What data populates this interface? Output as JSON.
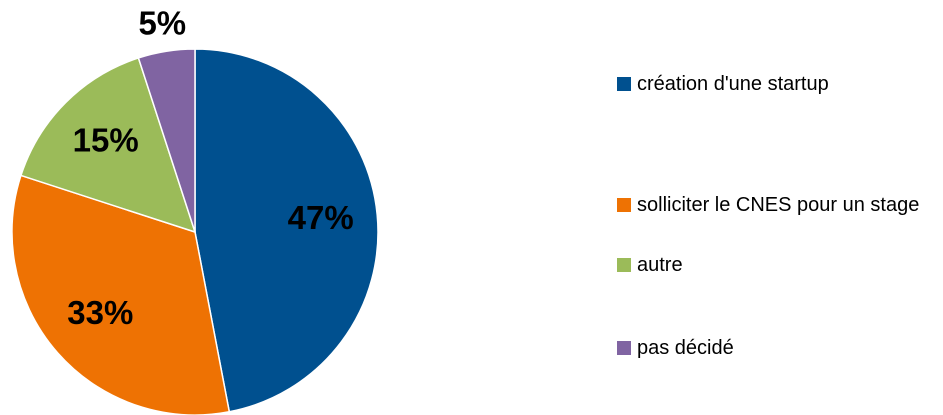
{
  "chart_data": {
    "type": "pie",
    "categories": [
      "création d'une startup",
      "solliciter le CNES pour un stage",
      "autre",
      "pas décidé"
    ],
    "values": [
      47,
      33,
      15,
      5
    ],
    "value_labels": [
      "47%",
      "33%",
      "15%",
      "5%"
    ],
    "colors": [
      "#00508f",
      "#ee7203",
      "#9bbb59",
      "#8064a2"
    ],
    "legend": "right"
  }
}
